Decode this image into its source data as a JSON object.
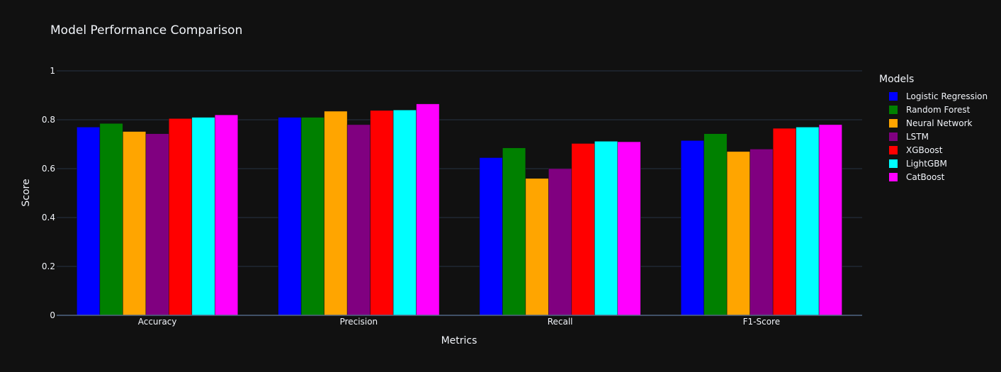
{
  "chart_data": {
    "type": "bar",
    "title": "Model Performance Comparison",
    "xlabel": "Metrics",
    "ylabel": "Score",
    "categories": [
      "Accuracy",
      "Precision",
      "Recall",
      "F1-Score"
    ],
    "ylim": [
      0,
      1
    ],
    "yticks": [
      0,
      0.2,
      0.4,
      0.6,
      0.8,
      1
    ],
    "ytick_labels": [
      "0",
      "0.2",
      "0.4",
      "0.6",
      "0.8",
      "1"
    ],
    "grid": true,
    "legend_title": "Models",
    "legend_position": "right",
    "series": [
      {
        "name": "Logistic Regression",
        "color": "#0000ff",
        "values": [
          0.77,
          0.81,
          0.645,
          0.715
        ]
      },
      {
        "name": "Random Forest",
        "color": "#008000",
        "values": [
          0.785,
          0.81,
          0.685,
          0.743
        ]
      },
      {
        "name": "Neural Network",
        "color": "#ffa500",
        "values": [
          0.752,
          0.835,
          0.56,
          0.67
        ]
      },
      {
        "name": "LSTM",
        "color": "#800080",
        "values": [
          0.743,
          0.78,
          0.6,
          0.68
        ]
      },
      {
        "name": "XGBoost",
        "color": "#ff0000",
        "values": [
          0.805,
          0.838,
          0.703,
          0.765
        ]
      },
      {
        "name": "LightGBM",
        "color": "#00ffff",
        "values": [
          0.81,
          0.84,
          0.712,
          0.77
        ]
      },
      {
        "name": "CatBoost",
        "color": "#ff00ff",
        "values": [
          0.82,
          0.865,
          0.71,
          0.78
        ]
      }
    ]
  }
}
